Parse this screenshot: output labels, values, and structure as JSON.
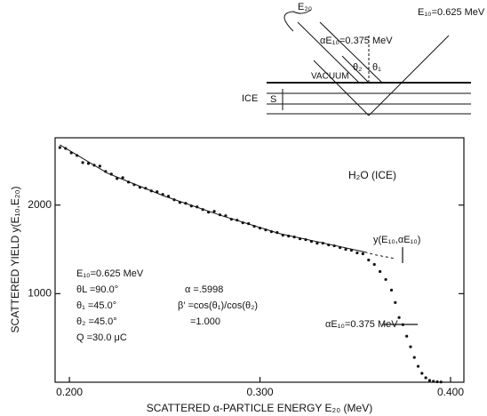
{
  "chart_data": {
    "type": "scatter",
    "title": "H₂O (ICE)",
    "x_label": "SCATTERED α-PARTICLE ENERGY E₂₀ (MeV)",
    "y_label": "SCATTERED YIELD  y(E₁₀,E₂₀)",
    "xlim": [
      0.1925,
      0.407
    ],
    "ylim": [
      0,
      2760
    ],
    "xticks": [
      {
        "value": 0.2,
        "label": "0.200"
      },
      {
        "value": 0.3,
        "label": "0.300"
      },
      {
        "value": 0.4,
        "label": "0.400"
      }
    ],
    "yticks": [
      1000,
      2000
    ],
    "series": [
      {
        "color": "#111",
        "x": [
          0.195,
          0.198,
          0.201,
          0.204,
          0.207,
          0.21,
          0.213,
          0.216,
          0.219,
          0.222,
          0.225,
          0.228,
          0.231,
          0.234,
          0.237,
          0.24,
          0.243,
          0.246,
          0.249,
          0.252,
          0.255,
          0.258,
          0.261,
          0.264,
          0.267,
          0.27,
          0.273,
          0.276,
          0.279,
          0.282,
          0.285,
          0.288,
          0.291,
          0.294,
          0.297,
          0.3,
          0.303,
          0.306,
          0.309,
          0.312,
          0.315,
          0.318,
          0.321,
          0.324,
          0.327,
          0.33,
          0.333,
          0.336,
          0.339,
          0.342,
          0.345,
          0.348,
          0.351,
          0.354,
          0.357,
          0.36,
          0.363,
          0.366,
          0.369,
          0.371,
          0.373,
          0.375,
          0.377,
          0.379,
          0.381,
          0.383,
          0.385,
          0.387,
          0.389,
          0.391,
          0.393,
          0.395
        ],
        "values": [
          2650,
          2640,
          2590,
          2560,
          2480,
          2470,
          2450,
          2440,
          2380,
          2350,
          2300,
          2310,
          2260,
          2230,
          2200,
          2190,
          2160,
          2150,
          2120,
          2100,
          2060,
          2030,
          2020,
          1990,
          1980,
          1950,
          1920,
          1930,
          1890,
          1880,
          1840,
          1830,
          1800,
          1790,
          1760,
          1740,
          1720,
          1700,
          1690,
          1660,
          1650,
          1640,
          1620,
          1610,
          1590,
          1570,
          1570,
          1550,
          1540,
          1520,
          1500,
          1490,
          1460,
          1450,
          1380,
          1330,
          1250,
          1160,
          1040,
          900,
          730,
          650,
          520,
          400,
          280,
          180,
          100,
          50,
          20,
          10,
          5,
          3
        ]
      },
      {
        "color": "#111",
        "line": true,
        "x": [
          0.195,
          0.22,
          0.25,
          0.28,
          0.31,
          0.34,
          0.355
        ],
        "values": [
          2680,
          2360,
          2100,
          1880,
          1680,
          1540,
          1470
        ]
      },
      {
        "color": "#111",
        "line": true,
        "dash": true,
        "x": [
          0.355,
          0.36,
          0.37
        ],
        "values": [
          1470,
          1440,
          1400
        ]
      }
    ],
    "annotations": [
      "y(E₁₀,αE₁₀)",
      "αE₁₀=0.375 MeV",
      "E₁₀=0.625 MeV",
      "θL =90.0°",
      "θ₁ =45.0°",
      "θ₂ =45.0°",
      "Q  =30.0 μC",
      "α  =.5998",
      "β′ =cos(θ₁)/cos(θ₂)",
      "=1.000"
    ]
  },
  "diagram": {
    "labels": [
      "E₂₀",
      "E₁₀=0.625 MeV",
      "αE₁₀=0.375 MeV",
      "θ₂",
      "θ₁",
      "VACUUM",
      "ICE",
      "S"
    ]
  }
}
